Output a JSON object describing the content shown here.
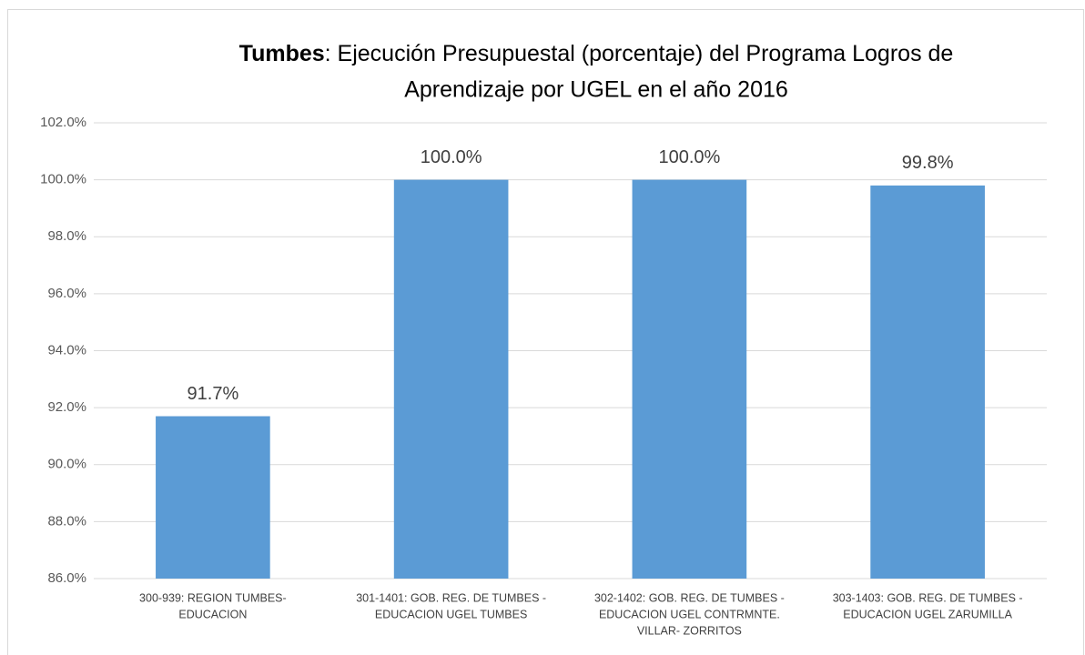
{
  "chart_data": {
    "type": "bar",
    "title": [
      "Tumbes",
      ": Ejecución Presupuestal (porcentaje) del Programa Logros de",
      "Aprendizaje por UGEL en el año 2016"
    ],
    "categories": [
      [
        "300-939: REGION TUMBES-",
        "EDUCACION"
      ],
      [
        "301-1401: GOB. REG. DE TUMBES -",
        "EDUCACION UGEL TUMBES"
      ],
      [
        "302-1402: GOB. REG. DE TUMBES -",
        "EDUCACION UGEL CONTRMNTE.",
        "VILLAR- ZORRITOS"
      ],
      [
        "303-1403: GOB. REG. DE TUMBES -",
        "EDUCACION UGEL ZARUMILLA"
      ]
    ],
    "values": [
      91.7,
      100.0,
      100.0,
      99.8
    ],
    "value_labels": [
      "91.7%",
      "100.0%",
      "100.0%",
      "99.8%"
    ],
    "color": "#5b9bd5",
    "ylim": [
      86,
      102
    ],
    "yticks": [
      {
        "value": 86,
        "label": "86.0%"
      },
      {
        "value": 88,
        "label": "88.0%"
      },
      {
        "value": 90,
        "label": "90.0%"
      },
      {
        "value": 92,
        "label": "92.0%"
      },
      {
        "value": 94,
        "label": "94.0%"
      },
      {
        "value": 96,
        "label": "96.0%"
      },
      {
        "value": 98,
        "label": "98.0%"
      },
      {
        "value": 100,
        "label": "100.0%"
      },
      {
        "value": 102,
        "label": "102.0%"
      }
    ],
    "grid": true
  }
}
